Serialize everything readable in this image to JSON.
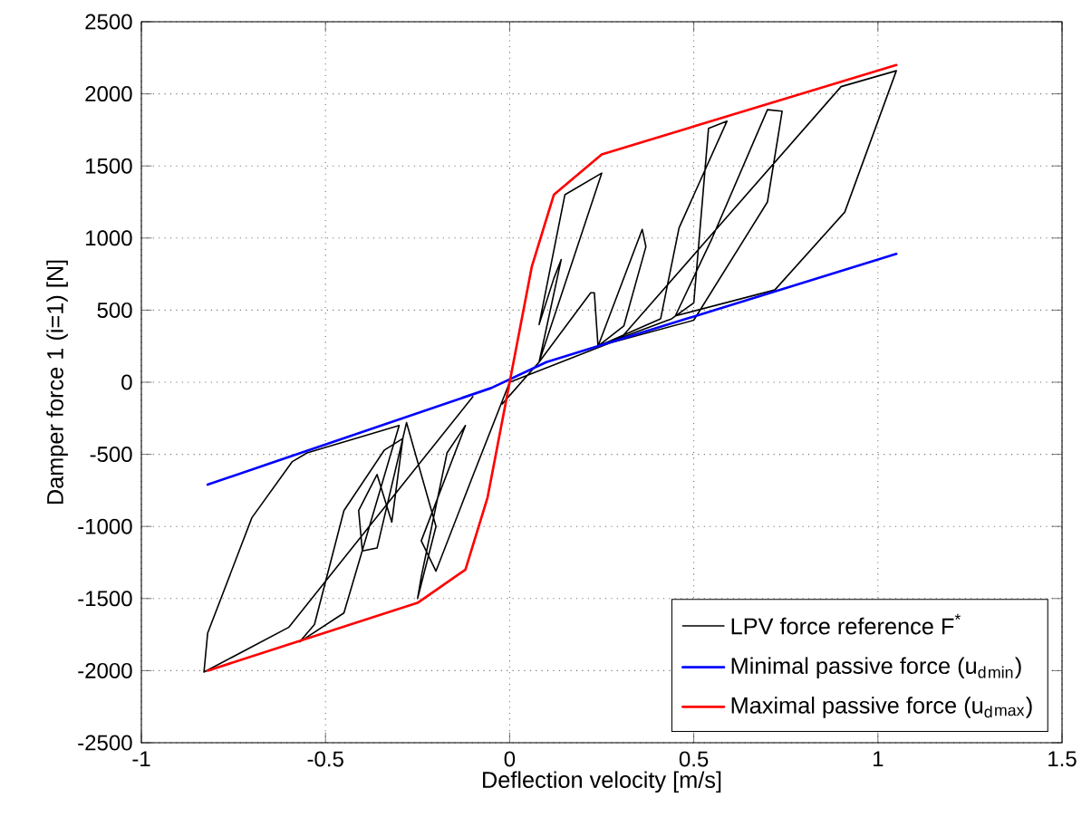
{
  "chart_data": {
    "type": "line",
    "xlabel": "Deflection velocity [m/s]",
    "ylabel": "Damper force 1 (i=1) [N]",
    "xlim": [
      -1,
      1.5
    ],
    "ylim": [
      -2500,
      2500
    ],
    "xticks": [
      -1,
      -0.5,
      0,
      0.5,
      1,
      1.5
    ],
    "yticks": [
      -2500,
      -2000,
      -1500,
      -1000,
      -500,
      0,
      500,
      1000,
      1500,
      2000,
      2500
    ],
    "grid": true,
    "legend": "bottom right",
    "series": [
      {
        "name": "LPV force reference F$^{*}$",
        "color": "#000000",
        "x": [
          -0.02,
          0.08,
          0.14,
          0.12,
          0.08,
          0.15,
          0.25,
          0.08,
          0.22,
          0.23,
          0.24,
          0.36,
          0.37,
          0.31,
          0.24,
          0.41,
          0.46,
          0.59,
          0.54,
          0.5,
          0.44,
          0.24,
          0.5,
          0.7,
          0.74,
          0.7,
          0.55,
          0.45,
          0.72,
          0.91,
          1.05,
          0.9,
          0.3,
          0,
          -0.1,
          -0.2,
          -0.24,
          -0.12,
          -0.17,
          -0.24,
          -0.25,
          -0.2,
          -0.28,
          -0.36,
          -0.4,
          -0.41,
          -0.36,
          -0.32,
          -0.29,
          -0.34,
          -0.45,
          -0.53,
          -0.57,
          -0.45,
          -0.3,
          -0.55,
          -0.59,
          -0.7,
          -0.82,
          -0.83,
          -0.6,
          -0.1
        ],
        "values": [
          -150,
          140,
          850,
          720,
          400,
          1300,
          1450,
          140,
          620,
          620,
          250,
          1060,
          940,
          390,
          250,
          440,
          1070,
          1810,
          1760,
          550,
          440,
          250,
          430,
          1250,
          1880,
          1890,
          1000,
          460,
          640,
          1180,
          2160,
          2050,
          300,
          0,
          -650,
          -1310,
          -1100,
          -300,
          -490,
          -1350,
          -1500,
          -1000,
          -280,
          -1150,
          -1170,
          -890,
          -640,
          -970,
          -390,
          -470,
          -890,
          -1680,
          -1800,
          -1600,
          -300,
          -490,
          -550,
          -940,
          -1740,
          -2010,
          -1700,
          -100
        ]
      },
      {
        "name": "Minimal passive force (u$_{d}$$_{min}$)",
        "color": "#0000ff",
        "x": [
          -0.82,
          -0.05,
          0.1,
          1.05
        ],
        "values": [
          -710,
          -40,
          140,
          890
        ]
      },
      {
        "name": "Maximal passive force (u$_{d}$$_{max}$)",
        "color": "#ff0000",
        "x": [
          -0.82,
          -0.25,
          -0.12,
          -0.06,
          0,
          0.06,
          0.12,
          0.25,
          1.05
        ],
        "values": [
          -2000,
          -1530,
          -1300,
          -800,
          0,
          800,
          1300,
          1580,
          2200
        ]
      }
    ]
  }
}
